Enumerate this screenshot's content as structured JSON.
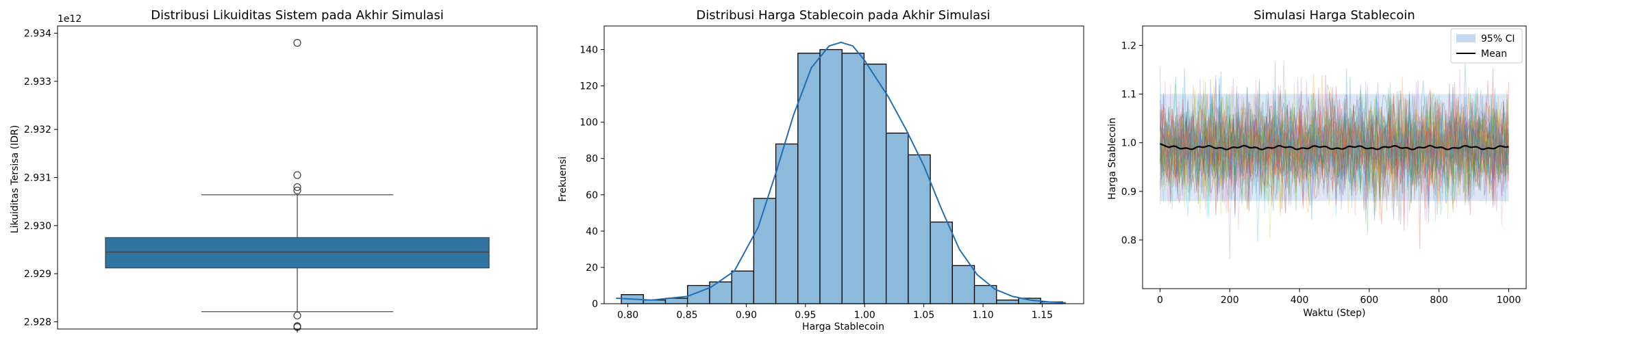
{
  "chart_data": [
    {
      "type": "box",
      "title": "Distribusi Likuiditas Sistem pada Akhir Simulasi",
      "xlabel": "",
      "ylabel": "Likuiditas Tersisa (IDR)",
      "offset_label": "1e12",
      "ylim": [
        2.92785,
        2.93415
      ],
      "yticks": [
        2.928,
        2.929,
        2.93,
        2.931,
        2.932,
        2.933,
        2.934
      ],
      "ytick_labels": [
        "2.928",
        "2.929",
        "2.930",
        "2.931",
        "2.932",
        "2.933",
        "2.934"
      ],
      "box": {
        "q1": 2.92912,
        "median": 2.92945,
        "q3": 2.92975,
        "whisker_low": 2.92821,
        "whisker_high": 2.93064
      },
      "outliers": [
        2.9338,
        2.93105,
        2.9308,
        2.93073,
        2.92813,
        2.92791,
        2.92789
      ],
      "color": "#3274a1"
    },
    {
      "type": "histogram",
      "title": "Distribusi Harga Stablecoin pada Akhir Simulasi",
      "xlabel": "Harga Stablecoin",
      "ylabel": "Frekuensi",
      "xlim": [
        0.78,
        1.185
      ],
      "ylim": [
        0,
        153
      ],
      "xticks": [
        0.8,
        0.85,
        0.9,
        0.95,
        1.0,
        1.05,
        1.1,
        1.15
      ],
      "xtick_labels": [
        "0.80",
        "0.85",
        "0.90",
        "0.95",
        "1.00",
        "1.05",
        "1.10",
        "1.15"
      ],
      "yticks": [
        0,
        20,
        40,
        60,
        80,
        100,
        120,
        140
      ],
      "ytick_labels": [
        "0",
        "20",
        "40",
        "60",
        "80",
        "100",
        "120",
        "140"
      ],
      "bin_start": 0.7945,
      "bin_width": 0.01864,
      "counts": [
        5,
        2,
        3,
        10,
        12,
        18,
        58,
        88,
        138,
        140,
        138,
        132,
        94,
        82,
        45,
        21,
        10,
        2,
        3,
        1
      ],
      "kde_x": [
        0.79,
        0.82,
        0.85,
        0.87,
        0.89,
        0.91,
        0.925,
        0.94,
        0.955,
        0.97,
        0.98,
        0.99,
        1.0,
        1.01,
        1.02,
        1.035,
        1.05,
        1.065,
        1.08,
        1.095,
        1.11,
        1.125,
        1.14,
        1.155,
        1.17
      ],
      "kde_y": [
        3,
        2,
        4,
        9,
        18,
        42,
        72,
        104,
        130,
        142,
        144,
        142,
        134,
        124,
        114,
        96,
        76,
        52,
        30,
        16,
        8,
        4,
        2,
        1,
        0.5
      ],
      "bar_color": "#8cbadb",
      "line_color": "#1f6eb4"
    },
    {
      "type": "line",
      "title": "Simulasi Harga Stablecoin",
      "xlabel": "Waktu (Step)",
      "ylabel": "Harga Stablecoin",
      "xlim": [
        -50,
        1050
      ],
      "ylim": [
        0.7,
        1.24
      ],
      "xticks": [
        0,
        200,
        400,
        600,
        800,
        1000
      ],
      "xtick_labels": [
        "0",
        "200",
        "400",
        "600",
        "800",
        "1000"
      ],
      "yticks": [
        0.8,
        0.9,
        1.0,
        1.1,
        1.2
      ],
      "ytick_labels": [
        "0.8",
        "0.9",
        "1.0",
        "1.1",
        "1.2"
      ],
      "legend": {
        "position": "top-right",
        "entries": [
          "95% CI",
          "Mean"
        ]
      },
      "ci_color": "#c5d9ee",
      "mean_color": "#000000",
      "mean_value": 0.99,
      "band_low": 0.88,
      "band_high": 1.1,
      "path_colors": [
        "#e377c2",
        "#d62728",
        "#2ca02c",
        "#1f77b4",
        "#ff7f0e",
        "#9467bd",
        "#bcbd22",
        "#17becf",
        "#8c564b"
      ]
    }
  ]
}
